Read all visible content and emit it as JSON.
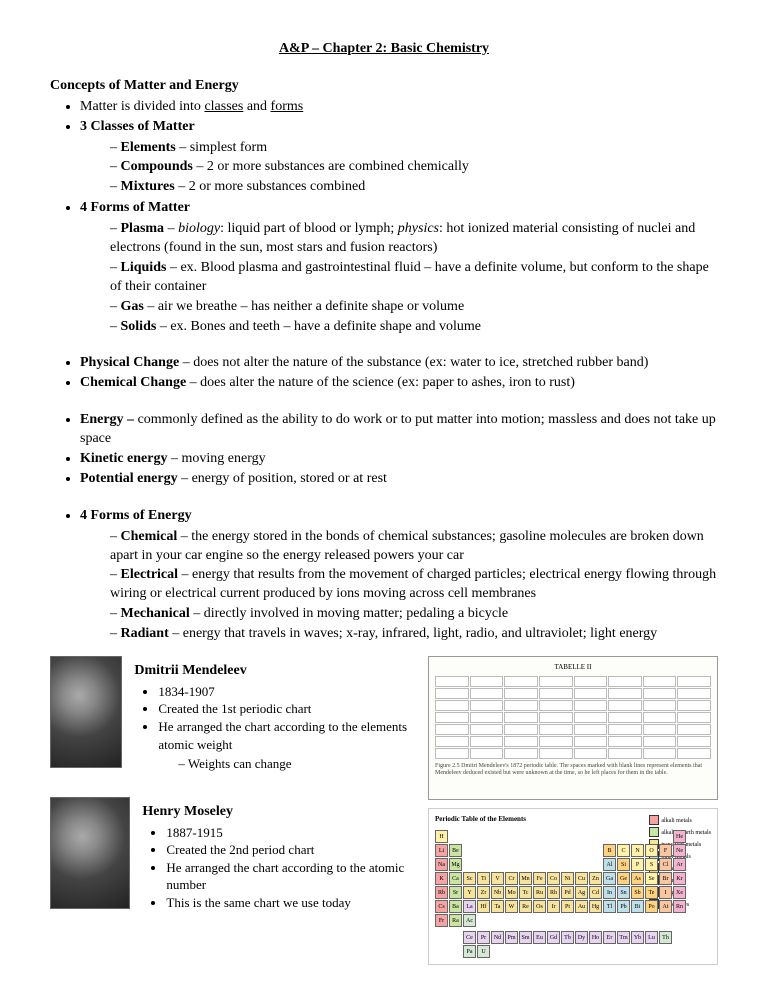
{
  "title": "A&P – Chapter 2: Basic Chemistry",
  "h1": "Concepts of Matter and Energy",
  "l1": "Matter is divided into ",
  "l1a": "classes",
  "l1b": " and ",
  "l1c": "forms",
  "l2": "3 Classes of Matter",
  "l2a": "Elements",
  "l2a2": " – simplest form",
  "l2b": "Compounds",
  "l2b2": " – 2 or more substances are combined chemically",
  "l2c": "Mixtures",
  "l2c2": " – 2 or more substances combined",
  "l3": "4 Forms of Matter",
  "l3a": "Plasma",
  "l3a2": " – ",
  "l3a3": "biology",
  "l3a4": ": liquid part of blood or lymph; ",
  "l3a5": "physics",
  "l3a6": ": hot ionized material consisting of nuclei and electrons (found in the sun, most stars and fusion reactors)",
  "l3b": "Liquids",
  "l3b2": " – ex. Blood plasma and gastrointestinal fluid – have a definite volume, but conform to the shape of their container",
  "l3c": "Gas",
  "l3c2": " – air we breathe – has neither a definite shape or volume",
  "l3d": "Solids",
  "l3d2": " – ex. Bones and teeth – have a definite shape and volume",
  "l4": "Physical Change",
  "l4b": " – does not alter the nature of the substance (ex: water to ice, stretched rubber band)",
  "l5": "Chemical Change",
  "l5b": " – does alter the nature of the science (ex: paper to ashes, iron to rust)",
  "l6": "Energy – ",
  "l6b": "commonly defined as the ability to do work or to put matter into motion; massless and does not take up space",
  "l7": "Kinetic energy",
  "l7b": " – moving energy",
  "l8": "Potential energy",
  "l8b": " – energy of position, stored or at rest",
  "l9": "4 Forms of Energy",
  "l9a": "Chemical",
  "l9a2": " – the energy stored in the bonds of chemical substances; gasoline molecules are broken down apart in your car engine so the energy released powers your car",
  "l9b": "Electrical",
  "l9b2": " – energy that results from the movement of charged particles; electrical energy flowing through wiring or electrical current produced by ions moving across cell membranes",
  "l9c": "Mechanical",
  "l9c2": " – directly involved in moving matter; pedaling a bicycle",
  "l9d": "Radiant",
  "l9d2": " – energy that travels in waves; x-ray, infrared, light, radio, and ultraviolet; light energy",
  "p1_name": "Dmitrii Mendeleev",
  "p1_dates": "1834-1907",
  "p1_l1": "Created the 1st periodic chart",
  "p1_l2": "He arranged the chart according to the elements atomic weight",
  "p1_l3": "Weights can change",
  "p2_name": "Henry Moseley",
  "p2_dates": "1887-1915",
  "p2_l1": "Created the 2nd period chart",
  "p2_l2": "He arranged the chart according to the atomic number",
  "p2_l3": "This is the same chart we use today",
  "old_title": "TABELLE II",
  "old_caption": "Figure 2.5  Dmitri Mendeleev's 1872 periodic table. The spaces marked with blank lines represent elements that Mendeleev deduced existed but were unknown at the time, so he left places for them in the table.",
  "pt_title": "Periodic Table of the Elements",
  "legend": [
    {
      "label": "alkali metals",
      "color": "#f5a3a3"
    },
    {
      "label": "alkaline earth metals",
      "color": "#c9e5a0"
    },
    {
      "label": "transition metals",
      "color": "#f7e39c"
    },
    {
      "label": "other metals",
      "color": "#bfe0e8"
    },
    {
      "label": "metalloids",
      "color": "#ffd280"
    },
    {
      "label": "nonmetals",
      "color": "#fff2a8"
    },
    {
      "label": "halogens",
      "color": "#f9c6a0"
    },
    {
      "label": "noble gases",
      "color": "#f4b3d0"
    }
  ],
  "colors": {
    "alkali": "#f5a3a3",
    "alkearth": "#c9e5a0",
    "trans": "#f7e39c",
    "othermetal": "#bfe0e8",
    "metalloid": "#ffd280",
    "nonmetal": "#fff2a8",
    "halogen": "#f9c6a0",
    "noble": "#f4b3d0",
    "lanth": "#e8d4f0",
    "act": "#d4e8d4"
  },
  "pt_layout": [
    [
      "H",
      "",
      "",
      "",
      "",
      "",
      "",
      "",
      "",
      "",
      "",
      "",
      "",
      "",
      "",
      "",
      "",
      "He"
    ],
    [
      "Li",
      "Be",
      "",
      "",
      "",
      "",
      "",
      "",
      "",
      "",
      "",
      "",
      "B",
      "C",
      "N",
      "O",
      "F",
      "Ne"
    ],
    [
      "Na",
      "Mg",
      "",
      "",
      "",
      "",
      "",
      "",
      "",
      "",
      "",
      "",
      "Al",
      "Si",
      "P",
      "S",
      "Cl",
      "Ar"
    ],
    [
      "K",
      "Ca",
      "Sc",
      "Ti",
      "V",
      "Cr",
      "Mn",
      "Fe",
      "Co",
      "Ni",
      "Cu",
      "Zn",
      "Ga",
      "Ge",
      "As",
      "Se",
      "Br",
      "Kr"
    ],
    [
      "Rb",
      "Sr",
      "Y",
      "Zr",
      "Nb",
      "Mo",
      "Tc",
      "Ru",
      "Rh",
      "Pd",
      "Ag",
      "Cd",
      "In",
      "Sn",
      "Sb",
      "Te",
      "I",
      "Xe"
    ],
    [
      "Cs",
      "Ba",
      "La",
      "Hf",
      "Ta",
      "W",
      "Re",
      "Os",
      "Ir",
      "Pt",
      "Au",
      "Hg",
      "Tl",
      "Pb",
      "Bi",
      "Po",
      "At",
      "Rn"
    ],
    [
      "Fr",
      "Ra",
      "Ac",
      "",
      "",
      "",
      "",
      "",
      "",
      "",
      "",
      "",
      "",
      "",
      "",
      "",
      "",
      ""
    ]
  ],
  "pt_cat": [
    [
      "nonmetal",
      "",
      "",
      "",
      "",
      "",
      "",
      "",
      "",
      "",
      "",
      "",
      "",
      "",
      "",
      "",
      "",
      "noble"
    ],
    [
      "alkali",
      "alkearth",
      "",
      "",
      "",
      "",
      "",
      "",
      "",
      "",
      "",
      "",
      "metalloid",
      "nonmetal",
      "nonmetal",
      "nonmetal",
      "halogen",
      "noble"
    ],
    [
      "alkali",
      "alkearth",
      "",
      "",
      "",
      "",
      "",
      "",
      "",
      "",
      "",
      "",
      "othermetal",
      "metalloid",
      "nonmetal",
      "nonmetal",
      "halogen",
      "noble"
    ],
    [
      "alkali",
      "alkearth",
      "trans",
      "trans",
      "trans",
      "trans",
      "trans",
      "trans",
      "trans",
      "trans",
      "trans",
      "trans",
      "othermetal",
      "metalloid",
      "metalloid",
      "nonmetal",
      "halogen",
      "noble"
    ],
    [
      "alkali",
      "alkearth",
      "trans",
      "trans",
      "trans",
      "trans",
      "trans",
      "trans",
      "trans",
      "trans",
      "trans",
      "trans",
      "othermetal",
      "othermetal",
      "metalloid",
      "metalloid",
      "halogen",
      "noble"
    ],
    [
      "alkali",
      "alkearth",
      "lanth",
      "trans",
      "trans",
      "trans",
      "trans",
      "trans",
      "trans",
      "trans",
      "trans",
      "trans",
      "othermetal",
      "othermetal",
      "othermetal",
      "metalloid",
      "halogen",
      "noble"
    ],
    [
      "alkali",
      "alkearth",
      "act",
      "",
      "",
      "",
      "",
      "",
      "",
      "",
      "",
      "",
      "",
      "",
      "",
      "",
      "",
      ""
    ]
  ],
  "lan_rows": [
    [
      "Ce",
      "Pr",
      "Nd",
      "Pm",
      "Sm",
      "Eu",
      "Gd",
      "Tb",
      "Dy",
      "Ho",
      "Er",
      "Tm",
      "Yb",
      "Lu"
    ],
    [
      "Th",
      "Pa",
      "U",
      "",
      "",
      "",
      "",
      "",
      "",
      "",
      "",
      "",
      "",
      ""
    ]
  ]
}
